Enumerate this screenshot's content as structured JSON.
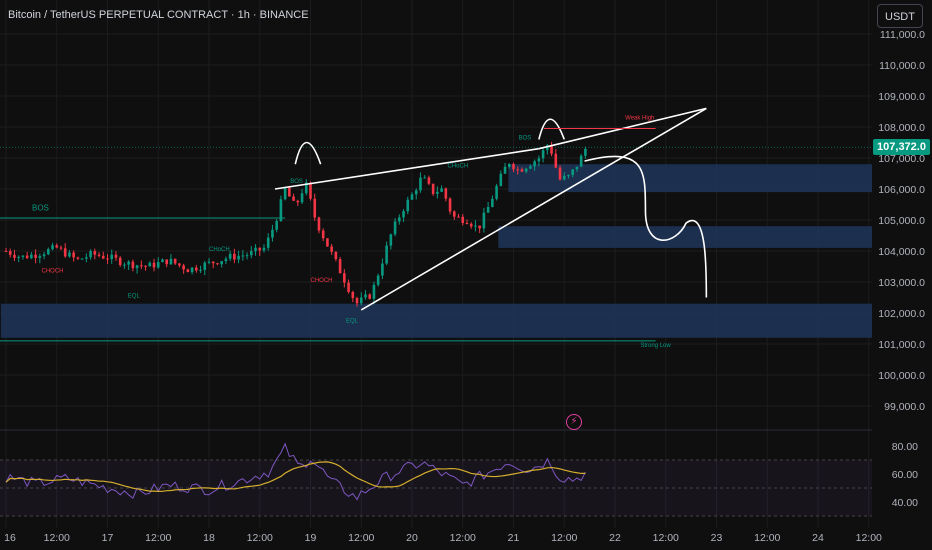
{
  "header": {
    "title": "Bitcoin / TetherUS PERPETUAL CONTRACT · 1h · BINANCE",
    "currency": "USDT"
  },
  "price_axis": {
    "ticks": [
      "111,000.0",
      "110,000.0",
      "109,000.0",
      "108,000.0",
      "107,000.0",
      "106,000.0",
      "105,000.0",
      "104,000.0",
      "103,000.0",
      "102,000.0",
      "101,000.0",
      "100,000.0",
      "99,000.0"
    ],
    "current_price": "107,372.0"
  },
  "rsi_axis": {
    "ticks": [
      "80.00",
      "60.00",
      "40.00"
    ]
  },
  "time_axis": {
    "ticks": [
      "16",
      "12:00",
      "17",
      "12:00",
      "18",
      "12:00",
      "19",
      "12:00",
      "20",
      "12:00",
      "21",
      "12:00",
      "22",
      "12:00",
      "23",
      "12:00",
      "24",
      "12:00"
    ]
  },
  "annotations": {
    "bos_left": "BOS",
    "bos_peak": "BOS",
    "bos_top": "BOS",
    "choch_1": "CHOCH",
    "choch_2": "CHoCH",
    "choch_3": "CHOCH",
    "choch_4": "CHoCH",
    "eql_1": "EQL",
    "eql_2": "EQL",
    "strong_low": "Strong Low",
    "weak_high": "Weak High"
  },
  "colors": {
    "up": "#089981",
    "down": "#f23645",
    "zone": "#1e3559",
    "rsi": "#7e57c2",
    "rsi_ma": "#d4ae2c"
  },
  "chart_data": {
    "type": "candlestick",
    "symbol": "BTCUSDT.P",
    "interval": "1h",
    "yrange": [
      98500,
      111300
    ],
    "close_path": [
      [
        16,
        104000
      ],
      [
        16.15,
        103800
      ],
      [
        16.3,
        103900
      ],
      [
        16.5,
        104100
      ],
      [
        16.7,
        103700
      ],
      [
        16.85,
        103900
      ],
      [
        17,
        103800
      ],
      [
        17.2,
        103600
      ],
      [
        17.4,
        103500
      ],
      [
        17.6,
        103700
      ],
      [
        17.8,
        103400
      ],
      [
        18,
        103600
      ],
      [
        18.2,
        103800
      ],
      [
        18.4,
        103900
      ],
      [
        18.55,
        104100
      ],
      [
        18.65,
        104900
      ],
      [
        18.75,
        106000
      ],
      [
        18.85,
        105400
      ],
      [
        18.95,
        106200
      ],
      [
        19.05,
        105000
      ],
      [
        19.15,
        104300
      ],
      [
        19.3,
        103300
      ],
      [
        19.45,
        102300
      ],
      [
        19.6,
        102600
      ],
      [
        19.7,
        103600
      ],
      [
        19.8,
        104600
      ],
      [
        19.9,
        105300
      ],
      [
        20.0,
        105800
      ],
      [
        20.1,
        106400
      ],
      [
        20.2,
        105900
      ],
      [
        20.3,
        106000
      ],
      [
        20.4,
        105100
      ],
      [
        20.55,
        105000
      ],
      [
        20.65,
        104700
      ],
      [
        20.75,
        105400
      ],
      [
        20.85,
        106200
      ],
      [
        20.95,
        106900
      ],
      [
        21.05,
        106600
      ],
      [
        21.15,
        106800
      ],
      [
        21.25,
        107000
      ],
      [
        21.35,
        107500
      ],
      [
        21.45,
        106300
      ],
      [
        21.55,
        106400
      ],
      [
        21.65,
        106900
      ],
      [
        21.72,
        107372
      ]
    ],
    "rsi_path": [
      [
        16,
        58
      ],
      [
        16.3,
        53
      ],
      [
        16.6,
        57
      ],
      [
        17,
        50
      ],
      [
        17.3,
        46
      ],
      [
        17.6,
        52
      ],
      [
        18,
        49
      ],
      [
        18.3,
        55
      ],
      [
        18.6,
        62
      ],
      [
        18.75,
        78
      ],
      [
        18.9,
        64
      ],
      [
        19.0,
        72
      ],
      [
        19.2,
        55
      ],
      [
        19.45,
        43
      ],
      [
        19.7,
        56
      ],
      [
        19.9,
        63
      ],
      [
        20.1,
        68
      ],
      [
        20.3,
        60
      ],
      [
        20.5,
        52
      ],
      [
        20.75,
        61
      ],
      [
        20.95,
        69
      ],
      [
        21.15,
        63
      ],
      [
        21.35,
        70
      ],
      [
        21.45,
        58
      ],
      [
        21.6,
        56
      ],
      [
        21.72,
        61
      ]
    ],
    "zones": [
      {
        "y1": 102300,
        "y2": 101200,
        "x1": 15.95,
        "x2": 24.4
      },
      {
        "y1": 104800,
        "y2": 104100,
        "x1": 20.85,
        "x2": 24.4
      },
      {
        "y1": 106800,
        "y2": 105900,
        "x1": 20.95,
        "x2": 24.4
      }
    ]
  }
}
